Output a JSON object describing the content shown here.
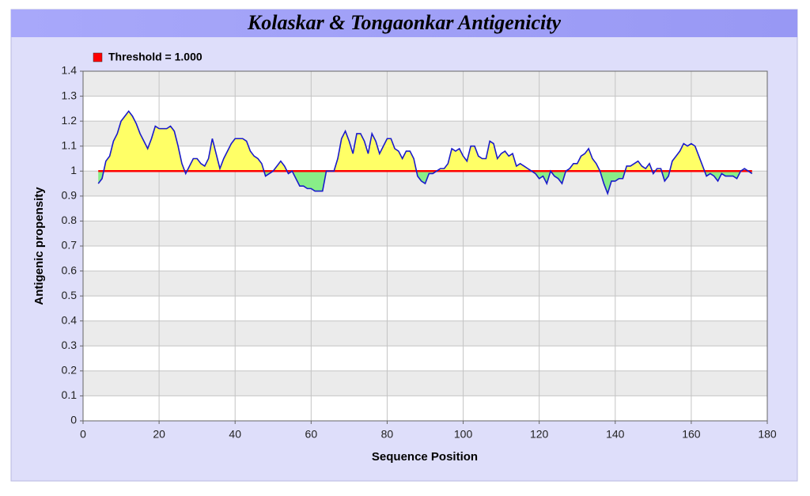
{
  "chart_data": {
    "type": "line",
    "title": "Kolaskar & Tongaonkar Antigenicity",
    "xlabel": "Sequence Position",
    "ylabel": "Antigenic propensity",
    "threshold": {
      "label": "Threshold  = 1.000",
      "value": 1,
      "color": "#ff0000"
    },
    "fill_above": "#ffff66",
    "fill_below": "#88ee88",
    "x": [
      4,
      5,
      6,
      7,
      8,
      9,
      10,
      11,
      12,
      13,
      14,
      15,
      16,
      17,
      18,
      19,
      20,
      21,
      22,
      23,
      24,
      25,
      26,
      27,
      28,
      29,
      30,
      31,
      32,
      33,
      34,
      35,
      36,
      37,
      38,
      39,
      40,
      41,
      42,
      43,
      44,
      45,
      46,
      47,
      48,
      49,
      50,
      51,
      52,
      53,
      54,
      55,
      56,
      57,
      58,
      59,
      60,
      61,
      62,
      63,
      64,
      65,
      66,
      67,
      68,
      69,
      70,
      71,
      72,
      73,
      74,
      75,
      76,
      77,
      78,
      79,
      80,
      81,
      82,
      83,
      84,
      85,
      86,
      87,
      88,
      89,
      90,
      91,
      92,
      93,
      94,
      95,
      96,
      97,
      98,
      99,
      100,
      101,
      102,
      103,
      104,
      105,
      106,
      107,
      108,
      109,
      110,
      111,
      112,
      113,
      114,
      115,
      116,
      117,
      118,
      119,
      120,
      121,
      122,
      123,
      124,
      125,
      126,
      127,
      128,
      129,
      130,
      131,
      132,
      133,
      134,
      135,
      136,
      137,
      138,
      139,
      140,
      141,
      142,
      143,
      144,
      145,
      146,
      147,
      148,
      149,
      150,
      151,
      152,
      153,
      154,
      155,
      156,
      157,
      158,
      159,
      160,
      161,
      162,
      163,
      164,
      165,
      166,
      167,
      168,
      169,
      170,
      171,
      172,
      173,
      174,
      175,
      176
    ],
    "series": [
      {
        "color": "#1a1acc",
        "values": [
          0.95,
          0.97,
          1.04,
          1.06,
          1.12,
          1.15,
          1.2,
          1.22,
          1.24,
          1.22,
          1.19,
          1.15,
          1.12,
          1.09,
          1.13,
          1.18,
          1.17,
          1.17,
          1.17,
          1.18,
          1.16,
          1.1,
          1.03,
          0.99,
          1.02,
          1.05,
          1.05,
          1.03,
          1.02,
          1.05,
          1.13,
          1.07,
          1.01,
          1.05,
          1.08,
          1.11,
          1.13,
          1.13,
          1.13,
          1.12,
          1.08,
          1.06,
          1.05,
          1.03,
          0.98,
          0.99,
          1.0,
          1.02,
          1.04,
          1.02,
          0.99,
          1.0,
          0.97,
          0.94,
          0.94,
          0.93,
          0.93,
          0.92,
          0.92,
          0.92,
          1.0,
          1.0,
          1.0,
          1.05,
          1.13,
          1.16,
          1.12,
          1.07,
          1.15,
          1.15,
          1.12,
          1.07,
          1.15,
          1.12,
          1.07,
          1.1,
          1.13,
          1.13,
          1.09,
          1.08,
          1.05,
          1.08,
          1.08,
          1.05,
          0.98,
          0.96,
          0.95,
          0.99,
          0.99,
          1.0,
          1.01,
          1.01,
          1.03,
          1.09,
          1.08,
          1.09,
          1.06,
          1.04,
          1.1,
          1.1,
          1.06,
          1.05,
          1.05,
          1.12,
          1.11,
          1.05,
          1.07,
          1.08,
          1.06,
          1.07,
          1.02,
          1.03,
          1.02,
          1.01,
          1.0,
          0.99,
          0.97,
          0.98,
          0.95,
          1.0,
          0.98,
          0.97,
          0.95,
          1.0,
          1.01,
          1.03,
          1.03,
          1.06,
          1.07,
          1.09,
          1.05,
          1.03,
          1.0,
          0.95,
          0.91,
          0.96,
          0.96,
          0.97,
          0.97,
          1.02,
          1.02,
          1.03,
          1.04,
          1.02,
          1.01,
          1.03,
          0.99,
          1.01,
          1.01,
          0.96,
          0.98,
          1.04,
          1.06,
          1.08,
          1.11,
          1.1,
          1.11,
          1.1,
          1.06,
          1.02,
          0.98,
          0.99,
          0.98,
          0.96,
          0.99,
          0.98,
          0.98,
          0.98,
          0.97,
          1.0,
          1.01,
          1.0,
          0.99
        ]
      }
    ],
    "xlim": [
      0,
      180
    ],
    "xticks": [
      0,
      20,
      40,
      60,
      80,
      100,
      120,
      140,
      160,
      180
    ],
    "ylim": [
      0,
      1.4
    ],
    "yticks": [
      0,
      0.1,
      0.2,
      0.3,
      0.4,
      0.5,
      0.6,
      0.7,
      0.8,
      0.9,
      1,
      1.1,
      1.2,
      1.3,
      1.4
    ],
    "grid": true
  }
}
